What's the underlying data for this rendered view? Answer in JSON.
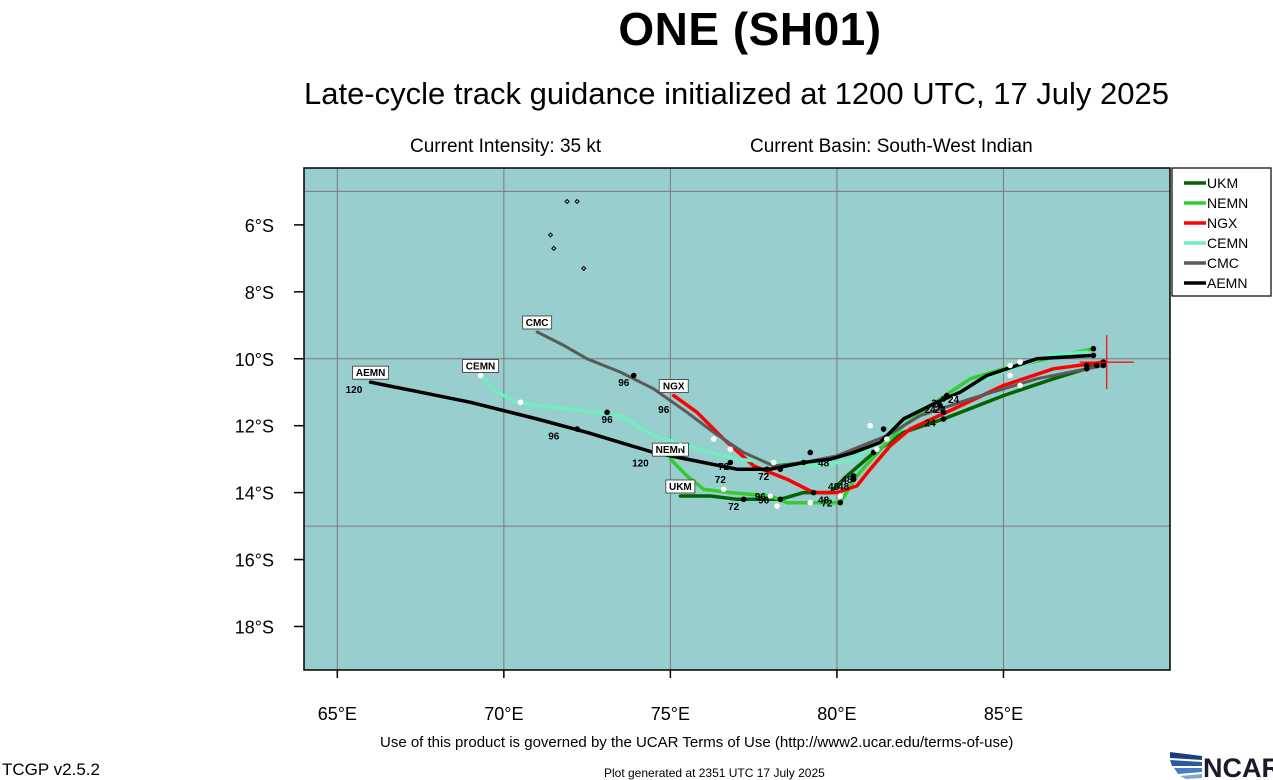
{
  "header": {
    "title": "ONE (SH01)",
    "subtitle": "Late-cycle track guidance initialized at 1200 UTC, 17 July 2025",
    "intensity": "Current Intensity: 35 kt",
    "basin": "Current Basin: South-West Indian"
  },
  "footer": {
    "terms": "Use of this product is governed by the UCAR Terms of Use (http://www2.ucar.edu/terms-of-use)",
    "version": "TCGP v2.5.2",
    "generated": "Plot generated at 2351 UTC   17 July 2025",
    "logo_text": "NCAR"
  },
  "colors": {
    "ocean": "#99cece",
    "grid": "#7a7a7a",
    "current_position": "#ff0000"
  },
  "map": {
    "lon_range": [
      64,
      90
    ],
    "lat_range": [
      -19.3,
      -4.3
    ],
    "lon_ticks": [
      65,
      70,
      75,
      80,
      85
    ],
    "lon_tick_labels": [
      "65°E",
      "70°E",
      "75°E",
      "80°E",
      "85°E"
    ],
    "lat_ticks": [
      -6,
      -8,
      -10,
      -12,
      -14,
      -16,
      -18
    ],
    "lat_tick_labels": [
      "6°S",
      "8°S",
      "10°S",
      "12°S",
      "14°S",
      "16°S",
      "18°S"
    ],
    "grid_lats": [
      -5,
      -10,
      -15
    ],
    "grid_lons": [
      65,
      70,
      75,
      80,
      85
    ],
    "current_position": {
      "lon": 88.1,
      "lat": -10.1
    },
    "islands": [
      {
        "lon": 71.9,
        "lat": -5.3
      },
      {
        "lon": 72.2,
        "lat": -5.3
      },
      {
        "lon": 71.4,
        "lat": -6.3
      },
      {
        "lon": 71.5,
        "lat": -6.7
      },
      {
        "lon": 72.4,
        "lat": -7.3
      }
    ]
  },
  "chart_data": {
    "type": "line",
    "x_axis": "Longitude",
    "y_axis": "Latitude",
    "series": [
      {
        "name": "UKM",
        "color": "#006400",
        "end_label": "UKM",
        "points": [
          [
            87.8,
            -10.2
          ],
          [
            86.5,
            -10.6
          ],
          [
            85,
            -11.1
          ],
          [
            83.2,
            -11.8
          ],
          [
            82,
            -12.2
          ],
          [
            81,
            -12.9
          ],
          [
            80.3,
            -13.5
          ],
          [
            79.8,
            -14
          ],
          [
            79,
            -14
          ],
          [
            78.3,
            -14.2
          ],
          [
            77,
            -14.2
          ],
          [
            76.2,
            -14.1
          ],
          [
            75.3,
            -14.1
          ]
        ],
        "dots": [
          [
            87.8,
            -10.2
          ],
          [
            83.2,
            -11.8
          ],
          [
            80.5,
            -13.5
          ],
          [
            78.3,
            -14.2
          ],
          [
            77.2,
            -14.2
          ]
        ],
        "labels": [
          {
            "text": "24",
            "lon": 82.8,
            "lat": -11.9
          },
          {
            "text": "48",
            "lon": 80.2,
            "lat": -13.8
          },
          {
            "text": "96",
            "lon": 77.8,
            "lat": -14.2
          },
          {
            "text": "72",
            "lon": 76.9,
            "lat": -14.4
          }
        ]
      },
      {
        "name": "NEMN",
        "color": "#33cc33",
        "end_label": "NEMN",
        "points": [
          [
            87.7,
            -9.7
          ],
          [
            86.3,
            -10
          ],
          [
            85,
            -10.3
          ],
          [
            84,
            -10.6
          ],
          [
            83.1,
            -11.2
          ],
          [
            82,
            -12
          ],
          [
            81.4,
            -12.6
          ],
          [
            80.6,
            -13.5
          ],
          [
            80.1,
            -14.3
          ],
          [
            79.3,
            -14.3
          ],
          [
            78.5,
            -14.3
          ],
          [
            78,
            -14.1
          ],
          [
            76.8,
            -14
          ],
          [
            76,
            -13.9
          ],
          [
            75.5,
            -13.5
          ],
          [
            75,
            -13
          ]
        ],
        "dots": [
          [
            87.7,
            -9.7
          ],
          [
            83.2,
            -11.2
          ],
          [
            81.1,
            -12.8
          ],
          [
            80.1,
            -14.3
          ],
          [
            78,
            -14.1
          ]
        ],
        "labels": [
          {
            "text": "24",
            "lon": 83,
            "lat": -11.3
          },
          {
            "text": "48",
            "lon": 80.3,
            "lat": -13.6
          },
          {
            "text": "72",
            "lon": 79.7,
            "lat": -14.3
          },
          {
            "text": "96",
            "lon": 77.7,
            "lat": -14.1
          },
          {
            "text": "120",
            "lon": 74.1,
            "lat": -13.1
          }
        ]
      },
      {
        "name": "NGX",
        "color": "#ff0000",
        "end_label": "NGX",
        "points": [
          [
            88,
            -10.1
          ],
          [
            86.5,
            -10.3
          ],
          [
            85,
            -10.8
          ],
          [
            83.5,
            -11.5
          ],
          [
            82.2,
            -12.1
          ],
          [
            81.6,
            -12.6
          ],
          [
            81,
            -13.3
          ],
          [
            80.6,
            -13.8
          ],
          [
            80,
            -14
          ],
          [
            79.3,
            -14
          ],
          [
            78.5,
            -13.6
          ],
          [
            77.5,
            -13.2
          ],
          [
            76.6,
            -12.4
          ],
          [
            75.8,
            -11.6
          ],
          [
            75.1,
            -11.1
          ]
        ],
        "dots": [
          [
            88,
            -10.1
          ],
          [
            83.2,
            -11.6
          ],
          [
            80.5,
            -13.6
          ],
          [
            79.3,
            -14
          ],
          [
            77.9,
            -13.3
          ]
        ],
        "labels": [
          {
            "text": "24",
            "lon": 82.8,
            "lat": -11.5
          },
          {
            "text": "48",
            "lon": 79.9,
            "lat": -13.8
          },
          {
            "text": "72",
            "lon": 77.8,
            "lat": -13.5
          },
          {
            "text": "96",
            "lon": 74.8,
            "lat": -11.5
          }
        ]
      },
      {
        "name": "CEMN",
        "color": "#70eec0",
        "end_label": "CEMN",
        "points": [
          [
            87.5,
            -9.8
          ],
          [
            86.4,
            -9.9
          ],
          [
            85.5,
            -10.2
          ],
          [
            85,
            -10.4
          ],
          [
            84.2,
            -10.7
          ],
          [
            83.5,
            -11.1
          ],
          [
            82.5,
            -11.5
          ],
          [
            81.7,
            -12
          ],
          [
            81.3,
            -12.5
          ],
          [
            80.5,
            -13
          ],
          [
            79.5,
            -13.2
          ],
          [
            78.1,
            -13.1
          ],
          [
            77,
            -13
          ],
          [
            75.5,
            -12.6
          ],
          [
            74.5,
            -12.3
          ],
          [
            73.5,
            -11.7
          ],
          [
            72,
            -11.5
          ],
          [
            71,
            -11.4
          ],
          [
            70.4,
            -11.3
          ],
          [
            69.8,
            -11
          ],
          [
            69.3,
            -10.5
          ]
        ],
        "dots": [
          [
            85.2,
            -10.2
          ],
          [
            85.5,
            -10.1
          ],
          [
            85.2,
            -10.5
          ],
          [
            85.5,
            -10.8
          ],
          [
            83.5,
            -11.2
          ],
          [
            81,
            -12
          ],
          [
            81.5,
            -12.4
          ],
          [
            81.2,
            -12.7
          ],
          [
            80.1,
            -14.1
          ],
          [
            79.2,
            -14.3
          ],
          [
            78.2,
            -14.4
          ],
          [
            78,
            -14.1
          ],
          [
            78.1,
            -13.1
          ],
          [
            76.6,
            -13.9
          ],
          [
            76.8,
            -12.7
          ],
          [
            76.3,
            -12.4
          ],
          [
            75.3,
            -12.6
          ],
          [
            70.5,
            -11.3
          ],
          [
            69.3,
            -10.5
          ]
        ],
        "labels": [
          {
            "text": "24",
            "lon": 83.1,
            "lat": -11.5
          },
          {
            "text": "48",
            "lon": 79.6,
            "lat": -14.2
          },
          {
            "text": "72",
            "lon": 76.5,
            "lat": -13.6
          },
          {
            "text": "96",
            "lon": 73.1,
            "lat": -11.8
          }
        ]
      },
      {
        "name": "CMC",
        "color": "#5a5a5a",
        "end_label": "CMC",
        "points": [
          [
            88,
            -10.2
          ],
          [
            86,
            -10.6
          ],
          [
            84,
            -11.2
          ],
          [
            82.5,
            -11.7
          ],
          [
            81.5,
            -12.3
          ],
          [
            80,
            -12.9
          ],
          [
            79,
            -13.1
          ],
          [
            78.1,
            -13.2
          ],
          [
            77.2,
            -12.8
          ],
          [
            76.3,
            -12.2
          ],
          [
            75.5,
            -11.6
          ],
          [
            74.5,
            -10.9
          ],
          [
            73.5,
            -10.4
          ],
          [
            72.5,
            -10
          ],
          [
            71.8,
            -9.6
          ],
          [
            71,
            -9.2
          ]
        ],
        "dots": [
          [
            88,
            -10.2
          ],
          [
            83.1,
            -11.4
          ],
          [
            79,
            -13.1
          ],
          [
            73.9,
            -10.5
          ]
        ],
        "labels": [
          {
            "text": "96",
            "lon": 73.6,
            "lat": -10.7
          }
        ]
      },
      {
        "name": "AEMN",
        "color": "#000000",
        "end_label": "AEMN",
        "points": [
          [
            87.7,
            -9.9
          ],
          [
            86,
            -10
          ],
          [
            84.5,
            -10.5
          ],
          [
            83.7,
            -11
          ],
          [
            83,
            -11.3
          ],
          [
            82,
            -11.8
          ],
          [
            81.3,
            -12.5
          ],
          [
            80.5,
            -12.8
          ],
          [
            79.8,
            -13
          ],
          [
            79,
            -13.1
          ],
          [
            78,
            -13.3
          ],
          [
            77,
            -13.3
          ],
          [
            76,
            -13.1
          ],
          [
            74.5,
            -12.8
          ],
          [
            72.5,
            -12.2
          ],
          [
            71,
            -11.8
          ],
          [
            69,
            -11.3
          ],
          [
            67.5,
            -11
          ],
          [
            66,
            -10.7
          ]
        ],
        "dots": [
          [
            87.7,
            -9.9
          ],
          [
            87.5,
            -10.2
          ],
          [
            87.5,
            -10.3
          ],
          [
            83.3,
            -11.1
          ],
          [
            81.4,
            -12.1
          ],
          [
            79.2,
            -12.8
          ],
          [
            78.3,
            -13.3
          ],
          [
            76.8,
            -13.1
          ],
          [
            73.1,
            -11.6
          ],
          [
            72.2,
            -12.1
          ]
        ],
        "labels": [
          {
            "text": "24",
            "lon": 83.5,
            "lat": -11.2
          },
          {
            "text": "48",
            "lon": 79.6,
            "lat": -13.1
          },
          {
            "text": "72",
            "lon": 76.6,
            "lat": -13.2
          },
          {
            "text": "96",
            "lon": 71.5,
            "lat": -12.3
          },
          {
            "text": "120",
            "lon": 65.5,
            "lat": -10.9
          }
        ]
      }
    ],
    "legend": {
      "placement": "right",
      "entries": [
        "UKM",
        "NEMN",
        "NGX",
        "CEMN",
        "CMC",
        "AEMN"
      ]
    }
  }
}
